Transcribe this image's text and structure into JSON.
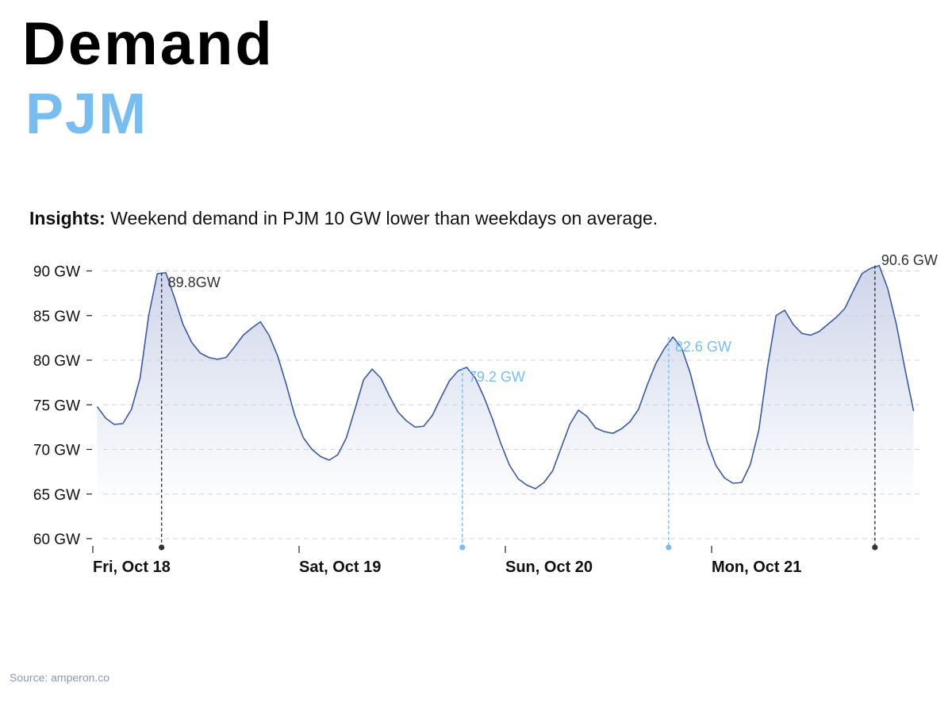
{
  "header": {
    "title": "Demand",
    "subtitle": "PJM"
  },
  "insights": {
    "label": "Insights:",
    "text": "Weekend demand in PJM 10 GW lower than weekdays on average."
  },
  "source": "Source: amperon.co",
  "colors": {
    "line": "#3a5aa8",
    "area": "#c5cee6",
    "accent": "#78bdf2",
    "peak_marker": "#333333"
  },
  "chart_data": {
    "type": "area",
    "title": "",
    "xlabel": "",
    "ylabel": "",
    "ylim": [
      59.2,
      90.8
    ],
    "yticks": [
      60,
      65,
      70,
      75,
      80,
      85,
      90
    ],
    "ytick_labels": [
      "60 GW",
      "65 GW",
      "70 GW",
      "75 GW",
      "80 GW",
      "85 GW",
      "90 GW"
    ],
    "x_start_hour": 0.5,
    "x_end_hour": 96.5,
    "x_step_hours": 1,
    "day_labels": [
      {
        "hour": 0,
        "label": "Fri, Oct 18"
      },
      {
        "hour": 24,
        "label": "Sat, Oct 19"
      },
      {
        "hour": 48,
        "label": "Sun, Oct 20"
      },
      {
        "hour": 72,
        "label": "Mon, Oct 21"
      }
    ],
    "grid": true,
    "series": [
      {
        "values": [
          74.8,
          73.5,
          72.8,
          72.9,
          74.5,
          78.0,
          85.0,
          89.7,
          89.8,
          87.0,
          84.0,
          82.0,
          80.8,
          80.3,
          80.1,
          80.3,
          81.5,
          82.8,
          83.6,
          84.3,
          82.8,
          80.5,
          77.3,
          73.8,
          71.3,
          70.0,
          69.2,
          68.8,
          69.4,
          71.3,
          74.5,
          77.8,
          79.0,
          78.0,
          76.0,
          74.2,
          73.2,
          72.5,
          72.6,
          73.8,
          75.8,
          77.7,
          78.8,
          79.2,
          78.0,
          75.9,
          73.4,
          70.6,
          68.2,
          66.7,
          66.0,
          65.6,
          66.3,
          67.6,
          70.2,
          72.8,
          74.4,
          73.7,
          72.4,
          72.0,
          71.8,
          72.3,
          73.1,
          74.5,
          77.2,
          79.6,
          81.3,
          82.6,
          81.4,
          78.6,
          74.8,
          70.8,
          68.2,
          66.8,
          66.2,
          66.3,
          68.3,
          72.2,
          79.2,
          85.0,
          85.6,
          84.0,
          83.0,
          82.8,
          83.2,
          84.0,
          84.8,
          85.8,
          87.8,
          89.7,
          90.3,
          90.6,
          88.0,
          84.0,
          79.0,
          74.3
        ]
      }
    ],
    "annotations": [
      {
        "hour": 8,
        "value": 89.8,
        "label": "89.8GW",
        "style": "dark"
      },
      {
        "hour": 43,
        "value": 79.2,
        "label": "79.2 GW",
        "style": "accent"
      },
      {
        "hour": 67,
        "value": 82.6,
        "label": "82.6 GW",
        "style": "accent"
      },
      {
        "hour": 91,
        "value": 90.6,
        "label": "90.6 GW",
        "style": "dark"
      }
    ]
  }
}
